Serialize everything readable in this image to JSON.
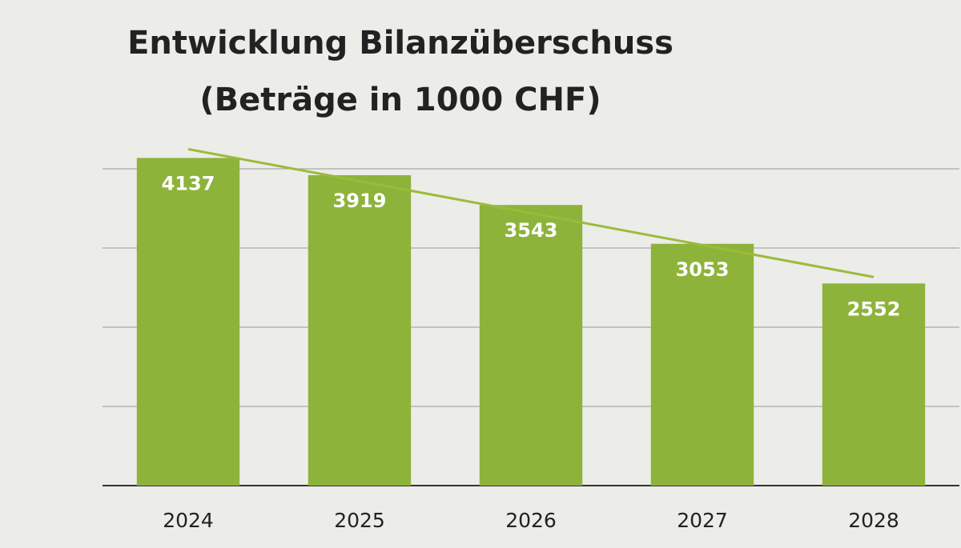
{
  "chart_data": {
    "type": "bar",
    "title": "Entwicklung Bilanzüberschuss",
    "subtitle": "(Beträge in 1000 CHF)",
    "categories": [
      "2024",
      "2025",
      "2026",
      "2027",
      "2028"
    ],
    "values": [
      4137,
      3919,
      3543,
      3053,
      2552
    ],
    "color": "#8db33a",
    "trendline_color": "#9bbb3a",
    "trendline": true,
    "ylim": [
      0,
      4500
    ],
    "yticks": [
      0,
      1000,
      2000,
      3000,
      4000
    ],
    "grid": true
  }
}
